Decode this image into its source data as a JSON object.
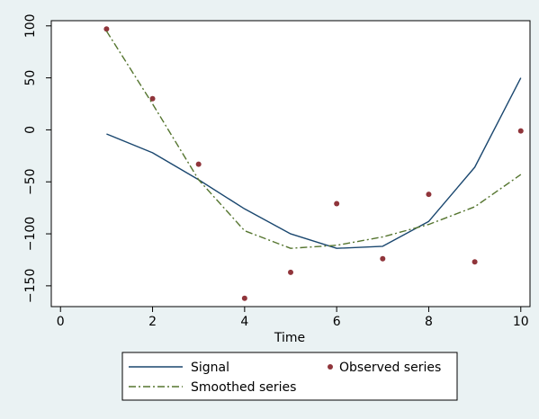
{
  "chart_data": {
    "type": "line",
    "title": "",
    "xlabel": "Time",
    "ylabel": "",
    "xlim": [
      -0.2,
      10.2
    ],
    "ylim": [
      -170,
      105
    ],
    "xticks": [
      0,
      2,
      4,
      6,
      8,
      10
    ],
    "yticks": [
      100,
      50,
      0,
      -50,
      -100,
      -150
    ],
    "grid": false,
    "legend_position": "bottom",
    "series": [
      {
        "name": "Signal",
        "kind": "line",
        "color": "#1a476f",
        "x": [
          1,
          2,
          3,
          4,
          5,
          6,
          7,
          8,
          9,
          10
        ],
        "y": [
          -4,
          -22,
          -48,
          -76,
          -100,
          -114,
          -112,
          -88,
          -36,
          50
        ]
      },
      {
        "name": "Observed series",
        "kind": "scatter",
        "color": "#90353b",
        "x": [
          1,
          2,
          3,
          4,
          5,
          6,
          7,
          8,
          9,
          10
        ],
        "y": [
          97,
          30,
          -33,
          -162,
          -137,
          -71,
          -124,
          -62,
          -127,
          -1
        ]
      },
      {
        "name": "Smoothed series",
        "kind": "line",
        "dash": "dash-dot",
        "color": "#55752f",
        "x": [
          1,
          2,
          3,
          4,
          5,
          6,
          7,
          8,
          9,
          10
        ],
        "y": [
          95,
          25,
          -48,
          -97,
          -114,
          -111,
          -103,
          -91,
          -74,
          -43
        ]
      }
    ]
  },
  "legend": {
    "items": [
      "Signal",
      "Observed series",
      "Smoothed series"
    ]
  }
}
